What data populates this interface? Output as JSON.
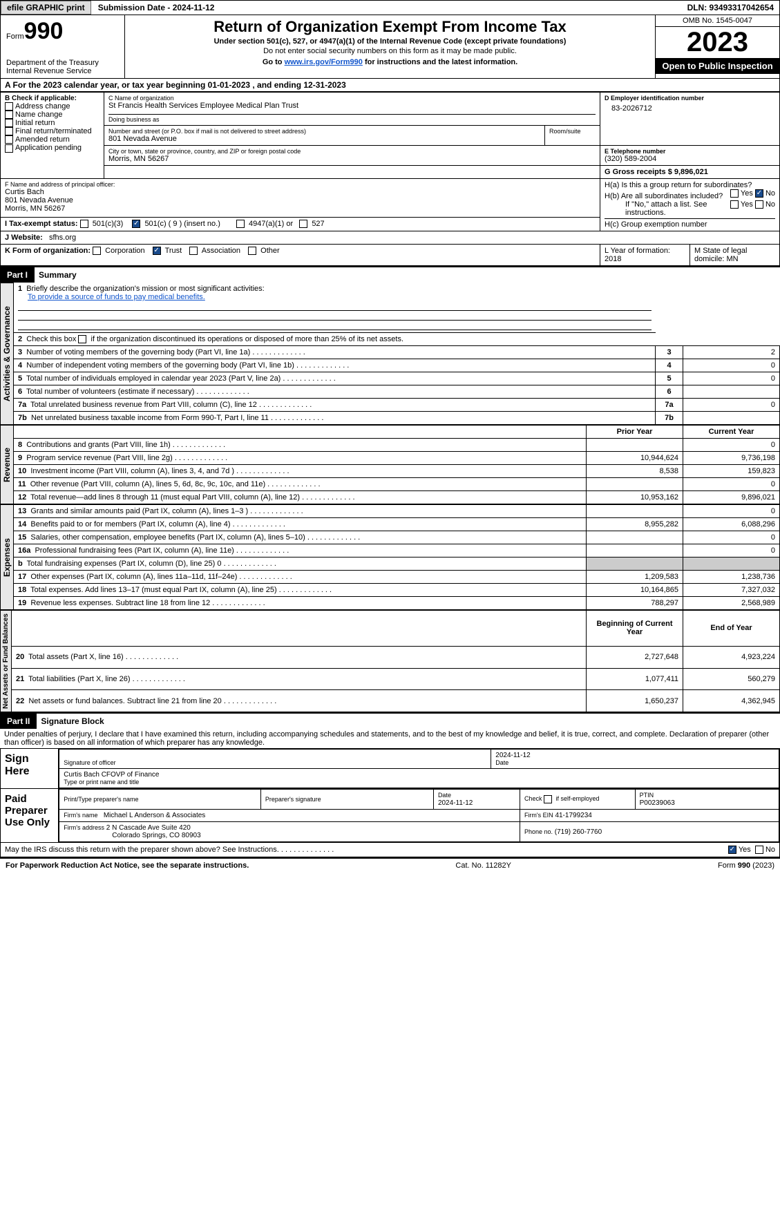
{
  "topbar": {
    "efile_btn": "efile GRAPHIC print",
    "submission_label": "Submission Date - 2024-11-12",
    "dln_label": "DLN: 93493317042654"
  },
  "header": {
    "form_word": "Form",
    "form_number": "990",
    "dept1": "Department of the Treasury",
    "dept2": "Internal Revenue Service",
    "title": "Return of Organization Exempt From Income Tax",
    "subtitle": "Under section 501(c), 527, or 4947(a)(1) of the Internal Revenue Code (except private foundations)",
    "note": "Do not enter social security numbers on this form as it may be made public.",
    "goto_prefix": "Go to ",
    "goto_link": "www.irs.gov/Form990",
    "goto_suffix": " for instructions and the latest information.",
    "omb": "OMB No. 1545-0047",
    "year": "2023",
    "inspection": "Open to Public Inspection"
  },
  "line_a": "A For the 2023 calendar year, or tax year beginning 01-01-2023   , and ending 12-31-2023",
  "box_b": {
    "label": "B Check if applicable:",
    "items": [
      "Address change",
      "Name change",
      "Initial return",
      "Final return/terminated",
      "Amended return",
      "Application pending"
    ]
  },
  "box_c": {
    "name_label": "C Name of organization",
    "name": "St Francis Health Services Employee Medical Plan Trust",
    "dba_label": "Doing business as",
    "street_label": "Number and street (or P.O. box if mail is not delivered to street address)",
    "room_label": "Room/suite",
    "street": "801 Nevada Avenue",
    "city_label": "City or town, state or province, country, and ZIP or foreign postal code",
    "city": "Morris, MN  56267"
  },
  "box_d": {
    "label": "D Employer identification number",
    "value": "83-2026712"
  },
  "box_e": {
    "label": "E Telephone number",
    "value": "(320) 589-2004"
  },
  "box_g": {
    "label": "G Gross receipts $ 9,896,021"
  },
  "box_f": {
    "label": "F  Name and address of principal officer:",
    "name": "Curtis Bach",
    "addr1": "801 Nevada Avenue",
    "addr2": "Morris, MN  56267"
  },
  "box_h": {
    "ha": "H(a)  Is this a group return for subordinates?",
    "hb": "H(b)  Are all subordinates included?",
    "hb_note": "If \"No,\" attach a list. See instructions.",
    "hc": "H(c)  Group exemption number",
    "yes": "Yes",
    "no": "No"
  },
  "box_i": {
    "label": "I   Tax-exempt status:",
    "opt1": "501(c)(3)",
    "opt2": "501(c) ( 9 ) (insert no.)",
    "opt3": "4947(a)(1) or",
    "opt4": "527"
  },
  "box_j": {
    "label": "J   Website:",
    "value": "sfhs.org"
  },
  "box_k": {
    "label": "K Form of organization:",
    "opts": [
      "Corporation",
      "Trust",
      "Association",
      "Other"
    ]
  },
  "box_l": "L Year of formation: 2018",
  "box_m": "M State of legal domicile: MN",
  "part1": {
    "header": "Part I",
    "title": "Summary"
  },
  "summary": {
    "line1_label": "Briefly describe the organization's mission or most significant activities:",
    "line1_text": "To provide a source of funds to pay medical benefits.",
    "line2": "Check this box      if the organization discontinued its operations or disposed of more than 25% of its net assets.",
    "vert_gov": "Activities & Governance",
    "vert_rev": "Revenue",
    "vert_exp": "Expenses",
    "vert_net": "Net Assets or Fund Balances",
    "rows_gov": [
      {
        "n": "3",
        "t": "Number of voting members of the governing body (Part VI, line 1a)",
        "v": "2"
      },
      {
        "n": "4",
        "t": "Number of independent voting members of the governing body (Part VI, line 1b)",
        "v": "0"
      },
      {
        "n": "5",
        "t": "Total number of individuals employed in calendar year 2023 (Part V, line 2a)",
        "v": "0"
      },
      {
        "n": "6",
        "t": "Total number of volunteers (estimate if necessary)",
        "v": ""
      },
      {
        "n": "7a",
        "t": "Total unrelated business revenue from Part VIII, column (C), line 12",
        "v": "0"
      },
      {
        "n": "7b",
        "t": "Net unrelated business taxable income from Form 990-T, Part I, line 11",
        "v": "",
        "nolabel": ""
      }
    ],
    "hdr_prior": "Prior Year",
    "hdr_current": "Current Year",
    "rows_rev": [
      {
        "n": "8",
        "t": "Contributions and grants (Part VIII, line 1h)",
        "p": "",
        "c": "0"
      },
      {
        "n": "9",
        "t": "Program service revenue (Part VIII, line 2g)",
        "p": "10,944,624",
        "c": "9,736,198"
      },
      {
        "n": "10",
        "t": "Investment income (Part VIII, column (A), lines 3, 4, and 7d )",
        "p": "8,538",
        "c": "159,823"
      },
      {
        "n": "11",
        "t": "Other revenue (Part VIII, column (A), lines 5, 6d, 8c, 9c, 10c, and 11e)",
        "p": "",
        "c": "0"
      },
      {
        "n": "12",
        "t": "Total revenue—add lines 8 through 11 (must equal Part VIII, column (A), line 12)",
        "p": "10,953,162",
        "c": "9,896,021"
      }
    ],
    "rows_exp": [
      {
        "n": "13",
        "t": "Grants and similar amounts paid (Part IX, column (A), lines 1–3 )",
        "p": "",
        "c": "0"
      },
      {
        "n": "14",
        "t": "Benefits paid to or for members (Part IX, column (A), line 4)",
        "p": "8,955,282",
        "c": "6,088,296"
      },
      {
        "n": "15",
        "t": "Salaries, other compensation, employee benefits (Part IX, column (A), lines 5–10)",
        "p": "",
        "c": "0"
      },
      {
        "n": "16a",
        "t": "Professional fundraising fees (Part IX, column (A), line 11e)",
        "p": "",
        "c": "0"
      },
      {
        "n": "b",
        "t": "Total fundraising expenses (Part IX, column (D), line 25) 0",
        "p": "",
        "c": "",
        "shade": true
      },
      {
        "n": "17",
        "t": "Other expenses (Part IX, column (A), lines 11a–11d, 11f–24e)",
        "p": "1,209,583",
        "c": "1,238,736"
      },
      {
        "n": "18",
        "t": "Total expenses. Add lines 13–17 (must equal Part IX, column (A), line 25)",
        "p": "10,164,865",
        "c": "7,327,032"
      },
      {
        "n": "19",
        "t": "Revenue less expenses. Subtract line 18 from line 12",
        "p": "788,297",
        "c": "2,568,989"
      }
    ],
    "hdr_begin": "Beginning of Current Year",
    "hdr_end": "End of Year",
    "rows_net": [
      {
        "n": "20",
        "t": "Total assets (Part X, line 16)",
        "p": "2,727,648",
        "c": "4,923,224"
      },
      {
        "n": "21",
        "t": "Total liabilities (Part X, line 26)",
        "p": "1,077,411",
        "c": "560,279"
      },
      {
        "n": "22",
        "t": "Net assets or fund balances. Subtract line 21 from line 20",
        "p": "1,650,237",
        "c": "4,362,945"
      }
    ]
  },
  "part2": {
    "header": "Part II",
    "title": "Signature Block"
  },
  "sig": {
    "declaration": "Under penalties of perjury, I declare that I have examined this return, including accompanying schedules and statements, and to the best of my knowledge and belief, it is true, correct, and complete. Declaration of preparer (other than officer) is based on all information of which preparer has any knowledge.",
    "sign_here": "Sign Here",
    "sig_officer": "Signature of officer",
    "officer_name": "Curtis Bach  CFOVP of Finance",
    "type_name": "Type or print name and title",
    "date_label": "Date",
    "date1": "2024-11-12",
    "paid_label": "Paid Preparer Use Only",
    "prep_name_label": "Print/Type preparer's name",
    "prep_sig_label": "Preparer's signature",
    "date2_label": "Date",
    "date2": "2024-11-12",
    "check_self": "Check        if self-employed",
    "ptin_label": "PTIN",
    "ptin": "P00239063",
    "firm_name_label": "Firm's name",
    "firm_name": "Michael L Anderson & Associates",
    "firm_ein_label": "Firm's EIN",
    "firm_ein": "41-1799234",
    "firm_addr_label": "Firm's address",
    "firm_addr1": "2 N Cascade Ave Suite 420",
    "firm_addr2": "Colorado Springs, CO  80903",
    "phone_label": "Phone no.",
    "phone": "(719) 260-7760",
    "discuss": "May the IRS discuss this return with the preparer shown above? See Instructions."
  },
  "footer": {
    "left": "For Paperwork Reduction Act Notice, see the separate instructions.",
    "mid": "Cat. No. 11282Y",
    "right": "Form 990 (2023)"
  }
}
